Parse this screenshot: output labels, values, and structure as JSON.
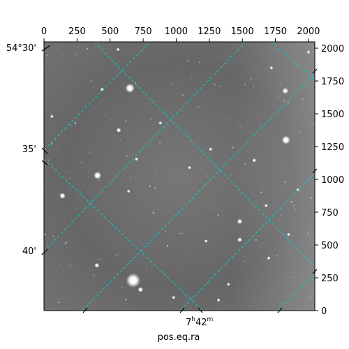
{
  "figure": {
    "xlabel": "pos.eq.ra",
    "ra_label": {
      "main": "7",
      "h": "h",
      "min": "42",
      "m": "m"
    }
  },
  "pixel_axes": {
    "x": {
      "range": [
        0,
        2048
      ],
      "ticks": [
        0,
        250,
        500,
        750,
        1000,
        1250,
        1500,
        1750,
        2000
      ],
      "labels": [
        "0",
        "250",
        "500",
        "750",
        "1000",
        "1250",
        "1500",
        "1750",
        "2000"
      ]
    },
    "y": {
      "range": [
        0,
        2048
      ],
      "ticks": [
        0,
        250,
        500,
        750,
        1000,
        1250,
        1500,
        1750,
        2000
      ],
      "labels": [
        "0",
        "250",
        "500",
        "750",
        "1000",
        "1250",
        "1500",
        "1750",
        "2000"
      ]
    }
  },
  "dec_labels": [
    "54°30'",
    "35'",
    "40'"
  ],
  "colors": {
    "grid": "#00d0d0",
    "sky_background": "#5c5c5c",
    "frame": "#000000"
  },
  "stars": [
    {
      "x": 650,
      "y": 1695,
      "r": 22
    },
    {
      "x": 1825,
      "y": 1675,
      "r": 14
    },
    {
      "x": 440,
      "y": 1685,
      "r": 9
    },
    {
      "x": 565,
      "y": 1375,
      "r": 11
    },
    {
      "x": 1830,
      "y": 1300,
      "r": 20
    },
    {
      "x": 700,
      "y": 1155,
      "r": 8
    },
    {
      "x": 1590,
      "y": 1145,
      "r": 9
    },
    {
      "x": 405,
      "y": 1030,
      "r": 18
    },
    {
      "x": 1100,
      "y": 1090,
      "r": 6
    },
    {
      "x": 640,
      "y": 910,
      "r": 7
    },
    {
      "x": 140,
      "y": 875,
      "r": 14
    },
    {
      "x": 1480,
      "y": 680,
      "r": 12
    },
    {
      "x": 1480,
      "y": 540,
      "r": 11
    },
    {
      "x": 1225,
      "y": 530,
      "r": 7
    },
    {
      "x": 400,
      "y": 345,
      "r": 11
    },
    {
      "x": 675,
      "y": 230,
      "r": 34
    },
    {
      "x": 730,
      "y": 160,
      "r": 12
    },
    {
      "x": 1395,
      "y": 200,
      "r": 7
    },
    {
      "x": 1920,
      "y": 920,
      "r": 6
    },
    {
      "x": 1680,
      "y": 800,
      "r": 5
    },
    {
      "x": 1260,
      "y": 1230,
      "r": 5
    },
    {
      "x": 880,
      "y": 1430,
      "r": 4
    },
    {
      "x": 1720,
      "y": 1850,
      "r": 6
    },
    {
      "x": 2000,
      "y": 1970,
      "r": 8
    },
    {
      "x": 60,
      "y": 1480,
      "r": 4
    },
    {
      "x": 1320,
      "y": 80,
      "r": 5
    },
    {
      "x": 980,
      "y": 100,
      "r": 5
    },
    {
      "x": 1700,
      "y": 400,
      "r": 5
    },
    {
      "x": 1850,
      "y": 580,
      "r": 6
    },
    {
      "x": 560,
      "y": 1990,
      "r": 5
    }
  ]
}
